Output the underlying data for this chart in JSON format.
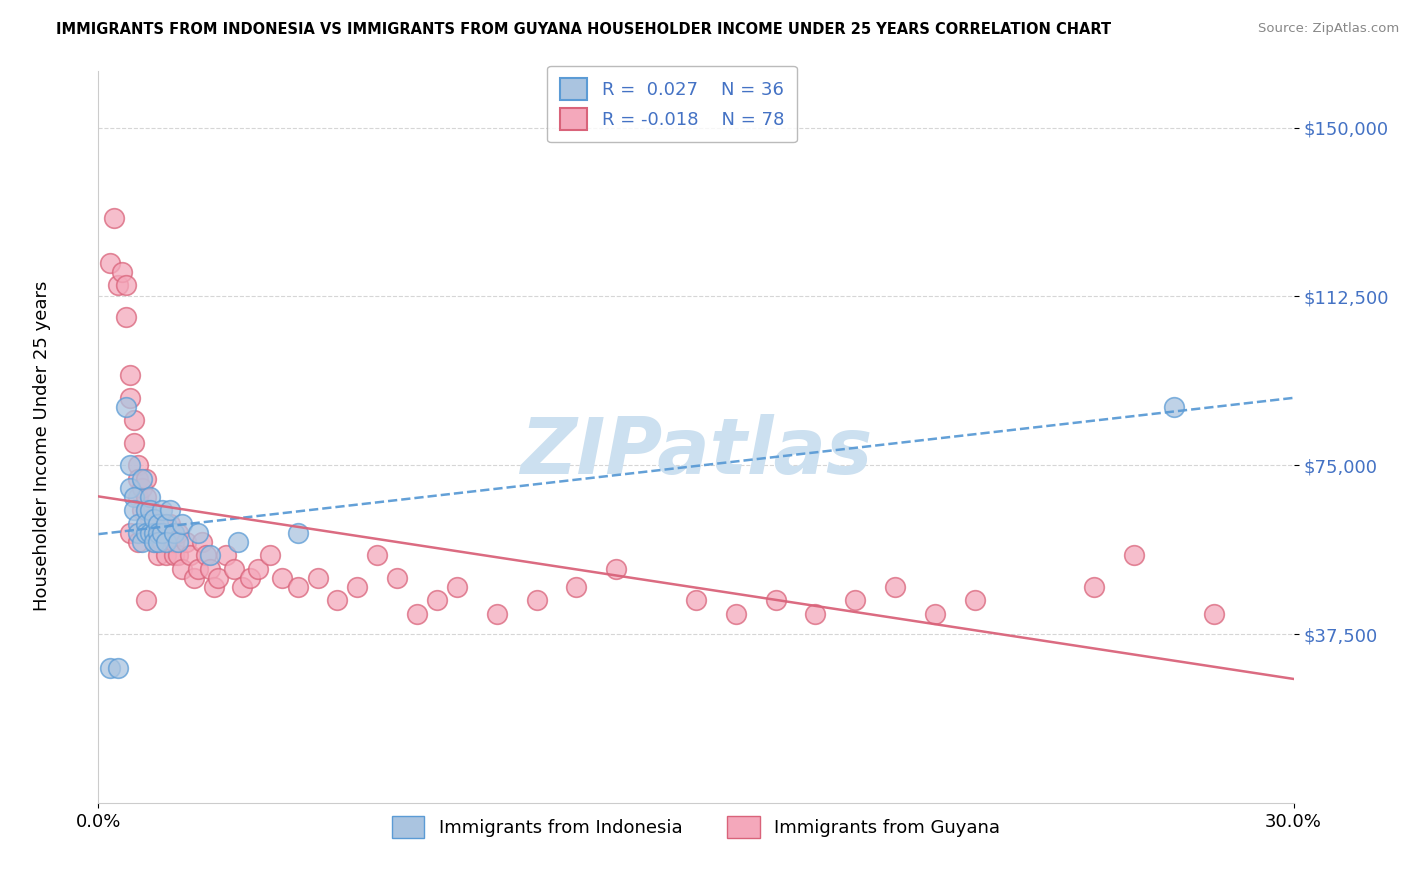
{
  "title": "IMMIGRANTS FROM INDONESIA VS IMMIGRANTS FROM GUYANA HOUSEHOLDER INCOME UNDER 25 YEARS CORRELATION CHART",
  "source": "Source: ZipAtlas.com",
  "ylabel": "Householder Income Under 25 years",
  "xlim": [
    0.0,
    0.3
  ],
  "ylim": [
    0,
    162500
  ],
  "yticks": [
    37500,
    75000,
    112500,
    150000
  ],
  "ytick_labels": [
    "$37,500",
    "$75,000",
    "$112,500",
    "$150,000"
  ],
  "xticks": [
    0.0,
    0.3
  ],
  "xtick_labels": [
    "0.0%",
    "30.0%"
  ],
  "indonesia_color": "#aac4e0",
  "guyana_color": "#f4a8bb",
  "trendline_indonesia_color": "#5b9bd5",
  "trendline_guyana_color": "#d9637a",
  "watermark": "ZIPatlas",
  "watermark_color": "#cce0f0",
  "indonesia_x": [
    0.003,
    0.005,
    0.007,
    0.008,
    0.008,
    0.009,
    0.009,
    0.01,
    0.01,
    0.011,
    0.011,
    0.012,
    0.012,
    0.012,
    0.013,
    0.013,
    0.013,
    0.014,
    0.014,
    0.014,
    0.015,
    0.015,
    0.015,
    0.016,
    0.016,
    0.017,
    0.017,
    0.018,
    0.019,
    0.02,
    0.021,
    0.025,
    0.028,
    0.035,
    0.05,
    0.27
  ],
  "indonesia_y": [
    30000,
    30000,
    88000,
    75000,
    70000,
    68000,
    65000,
    62000,
    60000,
    58000,
    72000,
    65000,
    62000,
    60000,
    68000,
    65000,
    60000,
    63000,
    60000,
    58000,
    62000,
    60000,
    58000,
    65000,
    60000,
    62000,
    58000,
    65000,
    60000,
    58000,
    62000,
    60000,
    55000,
    58000,
    60000,
    88000
  ],
  "guyana_x": [
    0.003,
    0.004,
    0.005,
    0.006,
    0.007,
    0.007,
    0.008,
    0.008,
    0.009,
    0.009,
    0.01,
    0.01,
    0.01,
    0.011,
    0.011,
    0.012,
    0.012,
    0.012,
    0.013,
    0.013,
    0.014,
    0.014,
    0.015,
    0.015,
    0.016,
    0.016,
    0.017,
    0.017,
    0.018,
    0.018,
    0.019,
    0.019,
    0.02,
    0.02,
    0.021,
    0.022,
    0.023,
    0.024,
    0.025,
    0.026,
    0.027,
    0.028,
    0.029,
    0.03,
    0.032,
    0.034,
    0.036,
    0.038,
    0.04,
    0.043,
    0.046,
    0.05,
    0.055,
    0.06,
    0.065,
    0.07,
    0.075,
    0.08,
    0.085,
    0.09,
    0.1,
    0.11,
    0.12,
    0.13,
    0.15,
    0.16,
    0.17,
    0.18,
    0.19,
    0.2,
    0.21,
    0.22,
    0.25,
    0.26,
    0.28,
    0.008,
    0.01,
    0.012
  ],
  "guyana_y": [
    120000,
    130000,
    115000,
    118000,
    108000,
    115000,
    95000,
    90000,
    85000,
    80000,
    75000,
    72000,
    68000,
    70000,
    65000,
    68000,
    72000,
    65000,
    60000,
    63000,
    62000,
    58000,
    60000,
    55000,
    62000,
    58000,
    55000,
    60000,
    58000,
    62000,
    55000,
    58000,
    60000,
    55000,
    52000,
    58000,
    55000,
    50000,
    52000,
    58000,
    55000,
    52000,
    48000,
    50000,
    55000,
    52000,
    48000,
    50000,
    52000,
    55000,
    50000,
    48000,
    50000,
    45000,
    48000,
    55000,
    50000,
    42000,
    45000,
    48000,
    42000,
    45000,
    48000,
    52000,
    45000,
    42000,
    45000,
    42000,
    45000,
    48000,
    42000,
    45000,
    48000,
    55000,
    42000,
    60000,
    58000,
    45000
  ]
}
